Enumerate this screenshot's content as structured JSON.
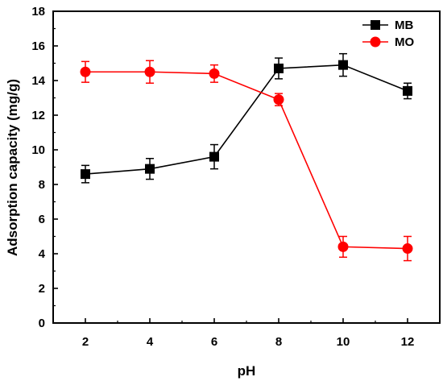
{
  "chart_data": {
    "type": "line",
    "xlabel": "pH",
    "ylabel": "Adsorption capacity (mg/g)",
    "xlim": [
      1,
      13
    ],
    "ylim": [
      0,
      18
    ],
    "xticks": [
      2,
      4,
      6,
      8,
      10,
      12
    ],
    "yticks": [
      0,
      2,
      4,
      6,
      8,
      10,
      12,
      14,
      16,
      18
    ],
    "grid": false,
    "legend_position": "top-right",
    "series": [
      {
        "name": "MB",
        "color": "#000000",
        "marker": "square",
        "x": [
          2,
          4,
          6,
          8,
          10,
          12
        ],
        "y": [
          8.6,
          8.9,
          9.6,
          14.7,
          14.9,
          13.4
        ],
        "error": [
          0.5,
          0.6,
          0.7,
          0.6,
          0.65,
          0.45
        ]
      },
      {
        "name": "MO",
        "color": "#ff0000",
        "marker": "circle",
        "x": [
          2,
          4,
          6,
          8,
          10,
          12
        ],
        "y": [
          14.5,
          14.5,
          14.4,
          12.9,
          4.4,
          4.3
        ],
        "error": [
          0.6,
          0.65,
          0.5,
          0.35,
          0.6,
          0.7
        ]
      }
    ]
  }
}
